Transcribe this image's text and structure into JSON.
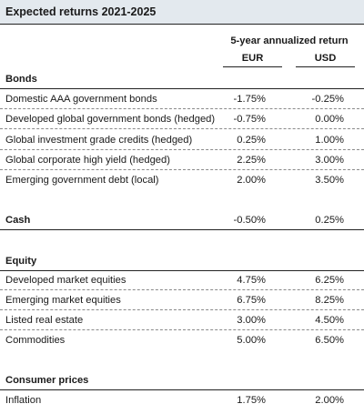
{
  "title": "Expected returns 2021-2025",
  "header": {
    "subtitle": "5-year annualized return",
    "col_eur": "EUR",
    "col_usd": "USD"
  },
  "sections": [
    {
      "name": "Bonds",
      "rows": [
        {
          "label": "Domestic AAA government bonds",
          "eur": "-1.75%",
          "usd": "-0.25%"
        },
        {
          "label": "Developed global government bonds (hedged)",
          "eur": "-0.75%",
          "usd": "0.00%"
        },
        {
          "label": "Global investment grade credits (hedged)",
          "eur": "0.25%",
          "usd": "1.00%"
        },
        {
          "label": "Global corporate high yield (hedged)",
          "eur": "2.25%",
          "usd": "3.00%"
        },
        {
          "label": "Emerging government debt (local)",
          "eur": "2.00%",
          "usd": "3.50%"
        }
      ]
    },
    {
      "name": "Cash",
      "eur": "-0.50%",
      "usd": "0.25%"
    },
    {
      "name": "Equity",
      "rows": [
        {
          "label": "Developed market equities",
          "eur": "4.75%",
          "usd": "6.25%"
        },
        {
          "label": "Emerging market equities",
          "eur": "6.75%",
          "usd": "8.25%"
        },
        {
          "label": "Listed real estate",
          "eur": "3.00%",
          "usd": "4.50%"
        },
        {
          "label": "Commodities",
          "eur": "5.00%",
          "usd": "6.50%"
        }
      ]
    },
    {
      "name": "Consumer prices",
      "rows": [
        {
          "label": "Inflation",
          "eur": "1.75%",
          "usd": "2.00%"
        }
      ]
    }
  ]
}
